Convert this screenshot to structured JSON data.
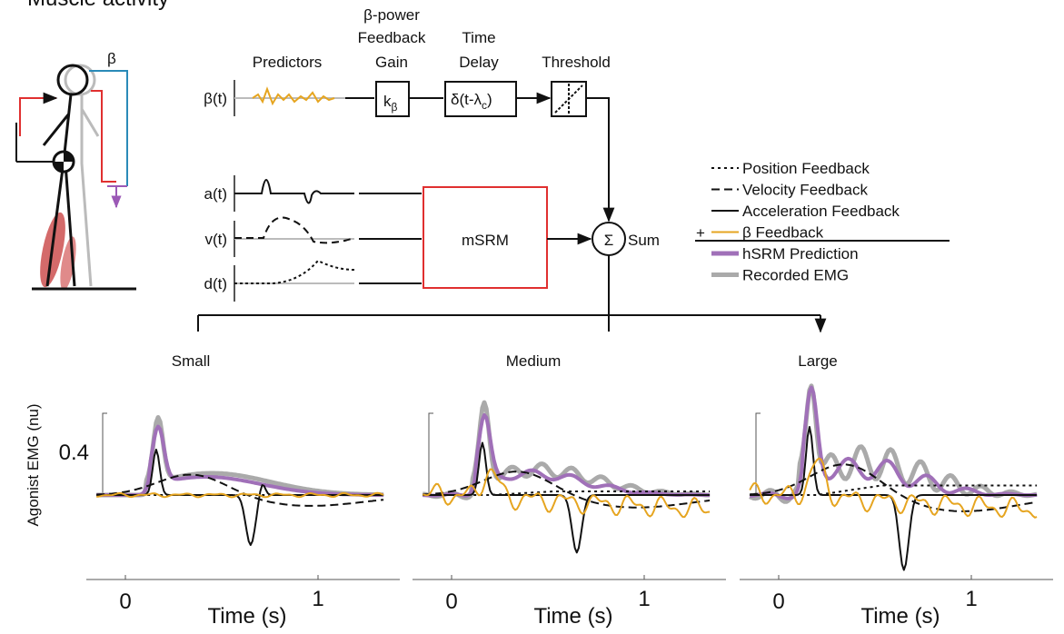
{
  "header": {
    "title": "Muscle activity"
  },
  "figure": {
    "label": "β"
  },
  "diagram": {
    "headers": {
      "predictors": "Predictors",
      "gain": [
        "β-power",
        "Feedback",
        "Gain"
      ],
      "delay": [
        "Time",
        "Delay"
      ],
      "threshold": "Threshold"
    },
    "signals": [
      "β(t)",
      "a(t)",
      "v(t)",
      "d(t)"
    ],
    "gain_block": {
      "base": "k",
      "sub": "β"
    },
    "delay_block": {
      "base": "δ(t-λ",
      "sub": "c",
      "tail": ")"
    },
    "model": "mSRM",
    "sum_symbol": "Σ",
    "sum_label": "Sum"
  },
  "legend": {
    "plus": "+",
    "items": [
      "Position Feedback",
      "Velocity Feedback",
      "Acceleration Feedback",
      "β Feedback",
      "hSRM Prediction",
      "Recorded EMG"
    ]
  },
  "panels": [
    {
      "title": "Small",
      "color": "#6cc4a4"
    },
    {
      "title": "Medium",
      "color": "#2e9e63"
    },
    {
      "title": "Large",
      "color": "#15703a"
    }
  ],
  "axes": {
    "y_label": "Agonist EMG (nu)",
    "y_tick": "0.4",
    "x_ticks": [
      "0",
      "1"
    ],
    "x_label": "Time (s)"
  }
}
